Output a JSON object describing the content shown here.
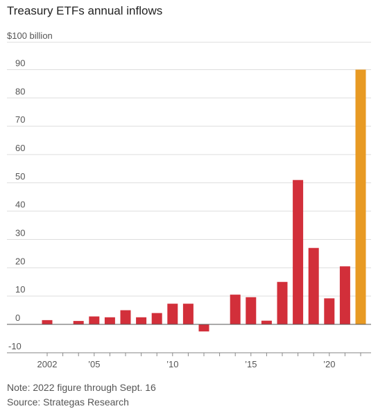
{
  "chart_data": {
    "type": "bar",
    "title": "Treasury ETFs annual inflows",
    "unit_label": "$100 billion",
    "ylim": [
      -10,
      100
    ],
    "yticks": [
      -10,
      0,
      10,
      20,
      30,
      40,
      50,
      60,
      70,
      80,
      90
    ],
    "grid": true,
    "x": [
      2002,
      2003,
      2004,
      2005,
      2006,
      2007,
      2008,
      2009,
      2010,
      2011,
      2012,
      2013,
      2014,
      2015,
      2016,
      2017,
      2018,
      2019,
      2020,
      2021,
      2022
    ],
    "values": [
      1.5,
      0,
      1.2,
      2.8,
      2.5,
      5.0,
      2.5,
      4.0,
      7.3,
      7.3,
      -2.5,
      0,
      10.5,
      9.6,
      1.3,
      15.0,
      51.0,
      27.0,
      9.2,
      20.5,
      90.0
    ],
    "xtick_labels": [
      {
        "year": 2002,
        "label": "2002"
      },
      {
        "year": 2005,
        "label": "’05"
      },
      {
        "year": 2010,
        "label": "’10"
      },
      {
        "year": 2015,
        "label": "’15"
      },
      {
        "year": 2020,
        "label": "’20"
      }
    ],
    "colors": {
      "default": "#d22f3a",
      "highlight": "#e89a23",
      "grid": "#dddddd",
      "zero": "#555555"
    },
    "highlight_year": 2022
  },
  "notes": {
    "note": "Note: 2022 figure through Sept. 16",
    "source": "Source: Strategas Research"
  }
}
